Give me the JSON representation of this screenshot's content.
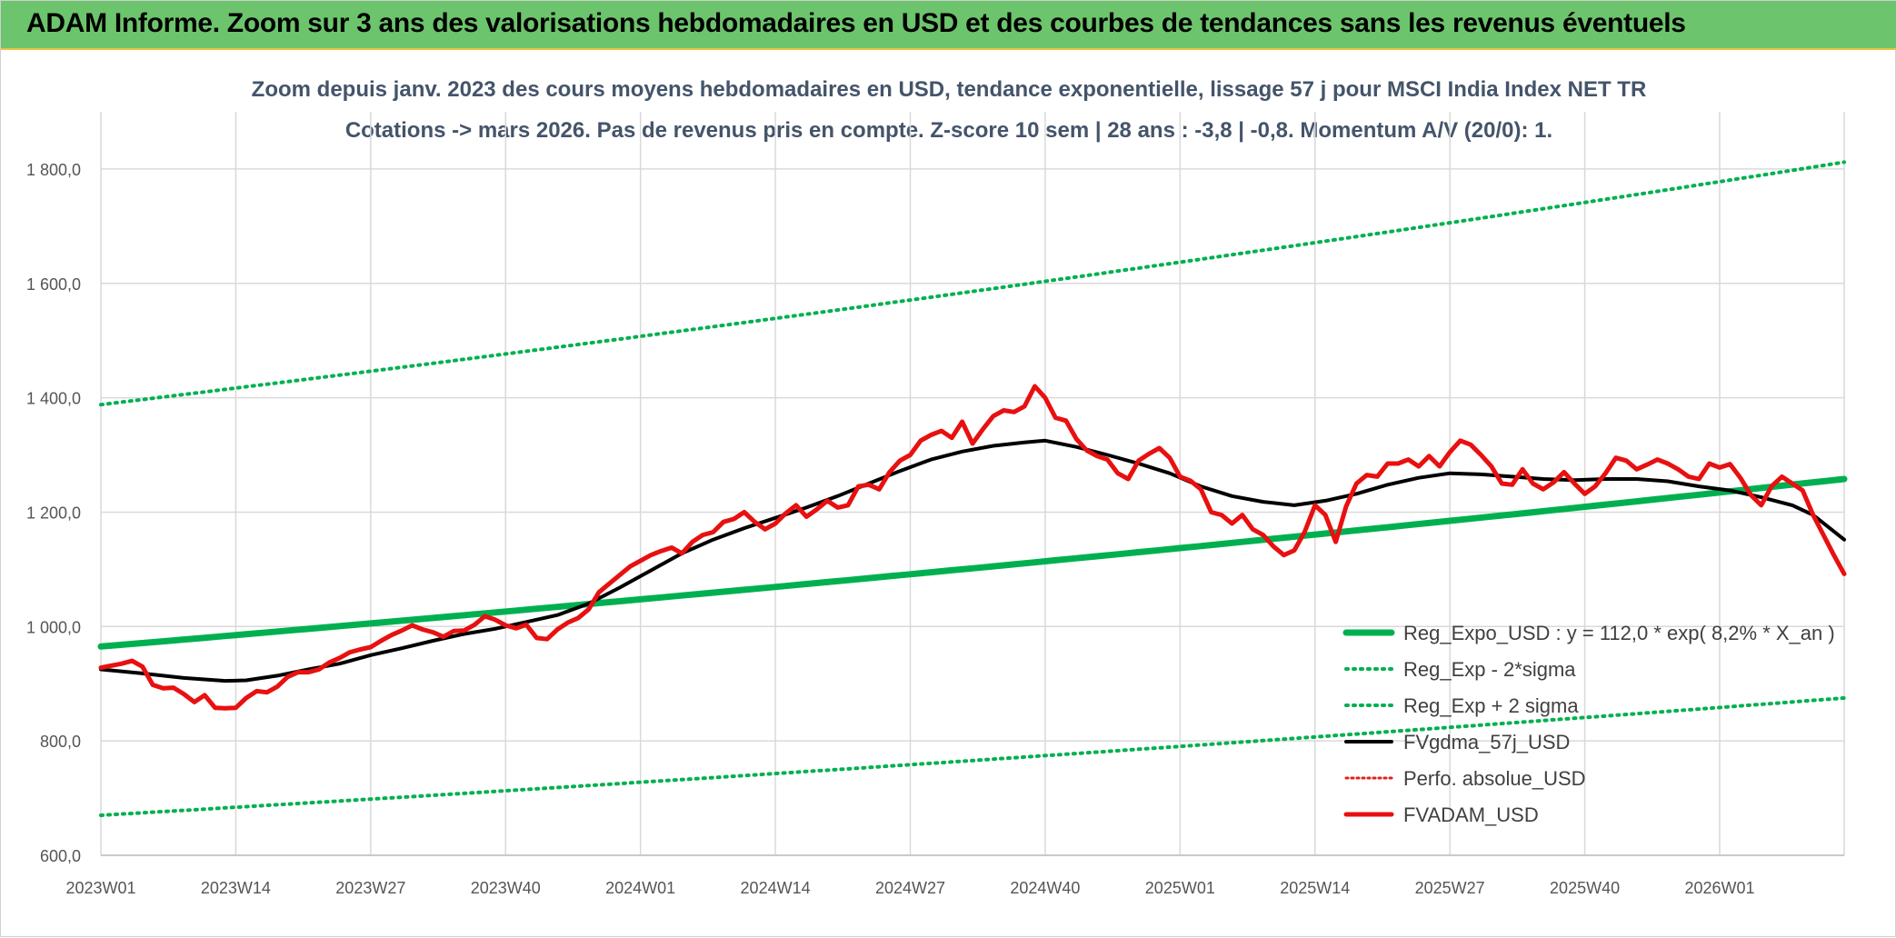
{
  "header": {
    "title": "ADAM Informe. Zoom sur 3 ans des valorisations hebdomadaires en USD et des courbes de tendances sans les revenus éventuels"
  },
  "chart_data": {
    "type": "line",
    "title": "Zoom depuis janv. 2023 des cours moyens hebdomadaires en USD, tendance exponentielle, lissage 57 j pour MSCI India Index NET TR",
    "subtitle": "Cotations -> mars 2026. Pas de revenus pris en compte. Z-score 10 sem | 28 ans : -3,8 | -0,8. Momentum A/V (20/0): 1.",
    "xlabel": "",
    "ylabel": "",
    "ylim": [
      600,
      1900
    ],
    "yticks": [
      600,
      800,
      1000,
      1200,
      1400,
      1600,
      1800
    ],
    "ytick_labels": [
      "600,0",
      "800,0",
      "1 000,0",
      "1 200,0",
      "1 400,0",
      "1 600,0",
      "1 800,0"
    ],
    "x_count": 169,
    "xticks": [
      {
        "i": 0,
        "label": "2023W01"
      },
      {
        "i": 13,
        "label": "2023W14"
      },
      {
        "i": 26,
        "label": "2023W27"
      },
      {
        "i": 39,
        "label": "2023W40"
      },
      {
        "i": 52,
        "label": "2024W01"
      },
      {
        "i": 65,
        "label": "2024W14"
      },
      {
        "i": 78,
        "label": "2024W27"
      },
      {
        "i": 91,
        "label": "2024W40"
      },
      {
        "i": 104,
        "label": "2025W01"
      },
      {
        "i": 117,
        "label": "2025W14"
      },
      {
        "i": 130,
        "label": "2025W27"
      },
      {
        "i": 143,
        "label": "2025W40"
      },
      {
        "i": 156,
        "label": "2026W01"
      }
    ],
    "grid": true,
    "legend": "bottom-right",
    "series": [
      {
        "name": "Reg_Expo_USD : y = 112,0 * exp( 8,2% *  X_an )",
        "kind": "expo",
        "start": 965,
        "end": 1258,
        "color": "#00b050",
        "width": 7,
        "dash": ""
      },
      {
        "name": "Reg_Exp - 2*sigma",
        "kind": "expo",
        "start": 670,
        "end": 875,
        "color": "#00b050",
        "width": 4,
        "dash": "2 6"
      },
      {
        "name": "Reg_Exp + 2 sigma",
        "kind": "expo",
        "start": 1388,
        "end": 1812,
        "color": "#00b050",
        "width": 4,
        "dash": "2 6"
      },
      {
        "name": "FVgdma_57j_USD",
        "kind": "points",
        "color": "#000000",
        "width": 4,
        "dash": "",
        "points": [
          [
            0,
            925
          ],
          [
            4,
            918
          ],
          [
            8,
            910
          ],
          [
            12,
            905
          ],
          [
            14,
            906
          ],
          [
            17,
            914
          ],
          [
            20,
            925
          ],
          [
            23,
            935
          ],
          [
            26,
            950
          ],
          [
            29,
            962
          ],
          [
            32,
            975
          ],
          [
            35,
            987
          ],
          [
            38,
            996
          ],
          [
            41,
            1008
          ],
          [
            44,
            1020
          ],
          [
            47,
            1040
          ],
          [
            50,
            1068
          ],
          [
            53,
            1098
          ],
          [
            56,
            1128
          ],
          [
            59,
            1152
          ],
          [
            62,
            1172
          ],
          [
            65,
            1190
          ],
          [
            68,
            1208
          ],
          [
            71,
            1228
          ],
          [
            74,
            1250
          ],
          [
            77,
            1272
          ],
          [
            80,
            1292
          ],
          [
            83,
            1306
          ],
          [
            86,
            1316
          ],
          [
            89,
            1322
          ],
          [
            91,
            1325
          ],
          [
            94,
            1314
          ],
          [
            97,
            1300
          ],
          [
            100,
            1285
          ],
          [
            103,
            1268
          ],
          [
            106,
            1245
          ],
          [
            109,
            1228
          ],
          [
            112,
            1218
          ],
          [
            115,
            1212
          ],
          [
            118,
            1220
          ],
          [
            121,
            1232
          ],
          [
            124,
            1248
          ],
          [
            127,
            1260
          ],
          [
            130,
            1268
          ],
          [
            133,
            1266
          ],
          [
            136,
            1262
          ],
          [
            139,
            1258
          ],
          [
            142,
            1256
          ],
          [
            145,
            1258
          ],
          [
            148,
            1258
          ],
          [
            151,
            1254
          ],
          [
            154,
            1245
          ],
          [
            157,
            1238
          ],
          [
            160,
            1226
          ],
          [
            163,
            1212
          ],
          [
            165,
            1195
          ],
          [
            168,
            1152
          ]
        ]
      },
      {
        "name": "Perfo. absolue_USD",
        "kind": "hidden",
        "color": "#e02020",
        "width": 3,
        "dash": "2 4"
      },
      {
        "name": "FVADAM_USD",
        "kind": "points",
        "color": "#e81010",
        "width": 5,
        "dash": "",
        "points": [
          [
            0,
            928
          ],
          [
            2,
            935
          ],
          [
            3,
            940
          ],
          [
            4,
            930
          ],
          [
            5,
            898
          ],
          [
            6,
            892
          ],
          [
            7,
            893
          ],
          [
            8,
            882
          ],
          [
            9,
            868
          ],
          [
            10,
            880
          ],
          [
            11,
            858
          ],
          [
            12,
            857
          ],
          [
            13,
            858
          ],
          [
            14,
            875
          ],
          [
            15,
            887
          ],
          [
            16,
            885
          ],
          [
            17,
            895
          ],
          [
            18,
            912
          ],
          [
            19,
            920
          ],
          [
            20,
            920
          ],
          [
            21,
            925
          ],
          [
            22,
            937
          ],
          [
            23,
            945
          ],
          [
            24,
            955
          ],
          [
            25,
            960
          ],
          [
            26,
            964
          ],
          [
            27,
            975
          ],
          [
            28,
            985
          ],
          [
            29,
            993
          ],
          [
            30,
            1002
          ],
          [
            31,
            995
          ],
          [
            32,
            990
          ],
          [
            33,
            982
          ],
          [
            34,
            992
          ],
          [
            35,
            993
          ],
          [
            36,
            1003
          ],
          [
            37,
            1018
          ],
          [
            38,
            1012
          ],
          [
            39,
            1002
          ],
          [
            40,
            997
          ],
          [
            41,
            1003
          ],
          [
            42,
            980
          ],
          [
            43,
            978
          ],
          [
            44,
            995
          ],
          [
            45,
            1007
          ],
          [
            46,
            1015
          ],
          [
            47,
            1030
          ],
          [
            48,
            1060
          ],
          [
            49,
            1075
          ],
          [
            50,
            1090
          ],
          [
            51,
            1105
          ],
          [
            52,
            1115
          ],
          [
            53,
            1125
          ],
          [
            54,
            1132
          ],
          [
            55,
            1138
          ],
          [
            56,
            1128
          ],
          [
            57,
            1148
          ],
          [
            58,
            1160
          ],
          [
            59,
            1165
          ],
          [
            60,
            1183
          ],
          [
            61,
            1188
          ],
          [
            62,
            1200
          ],
          [
            63,
            1183
          ],
          [
            64,
            1170
          ],
          [
            65,
            1180
          ],
          [
            66,
            1198
          ],
          [
            67,
            1212
          ],
          [
            68,
            1192
          ],
          [
            69,
            1205
          ],
          [
            70,
            1220
          ],
          [
            71,
            1208
          ],
          [
            72,
            1212
          ],
          [
            73,
            1245
          ],
          [
            74,
            1248
          ],
          [
            75,
            1240
          ],
          [
            76,
            1270
          ],
          [
            77,
            1290
          ],
          [
            78,
            1300
          ],
          [
            79,
            1325
          ],
          [
            80,
            1335
          ],
          [
            81,
            1342
          ],
          [
            82,
            1330
          ],
          [
            83,
            1358
          ],
          [
            84,
            1320
          ],
          [
            85,
            1345
          ],
          [
            86,
            1368
          ],
          [
            87,
            1378
          ],
          [
            88,
            1375
          ],
          [
            89,
            1385
          ],
          [
            90,
            1420
          ],
          [
            91,
            1400
          ],
          [
            92,
            1365
          ],
          [
            93,
            1360
          ],
          [
            94,
            1328
          ],
          [
            95,
            1308
          ],
          [
            96,
            1298
          ],
          [
            97,
            1292
          ],
          [
            98,
            1268
          ],
          [
            99,
            1258
          ],
          [
            100,
            1290
          ],
          [
            101,
            1302
          ],
          [
            102,
            1312
          ],
          [
            103,
            1295
          ],
          [
            104,
            1262
          ],
          [
            105,
            1255
          ],
          [
            106,
            1240
          ],
          [
            107,
            1200
          ],
          [
            108,
            1195
          ],
          [
            109,
            1180
          ],
          [
            110,
            1195
          ],
          [
            111,
            1170
          ],
          [
            112,
            1160
          ],
          [
            113,
            1140
          ],
          [
            114,
            1125
          ],
          [
            115,
            1133
          ],
          [
            116,
            1165
          ],
          [
            117,
            1212
          ],
          [
            118,
            1195
          ],
          [
            119,
            1148
          ],
          [
            120,
            1210
          ],
          [
            121,
            1250
          ],
          [
            122,
            1265
          ],
          [
            123,
            1262
          ],
          [
            124,
            1285
          ],
          [
            125,
            1285
          ],
          [
            126,
            1292
          ],
          [
            127,
            1280
          ],
          [
            128,
            1298
          ],
          [
            129,
            1280
          ],
          [
            130,
            1305
          ],
          [
            131,
            1325
          ],
          [
            132,
            1318
          ],
          [
            133,
            1300
          ],
          [
            134,
            1280
          ],
          [
            135,
            1250
          ],
          [
            136,
            1248
          ],
          [
            137,
            1275
          ],
          [
            138,
            1250
          ],
          [
            139,
            1240
          ],
          [
            140,
            1252
          ],
          [
            141,
            1270
          ],
          [
            142,
            1250
          ],
          [
            143,
            1232
          ],
          [
            144,
            1245
          ],
          [
            145,
            1268
          ],
          [
            146,
            1295
          ],
          [
            147,
            1290
          ],
          [
            148,
            1275
          ],
          [
            149,
            1283
          ],
          [
            150,
            1292
          ],
          [
            151,
            1285
          ],
          [
            152,
            1275
          ],
          [
            153,
            1262
          ],
          [
            154,
            1258
          ],
          [
            155,
            1285
          ],
          [
            156,
            1278
          ],
          [
            157,
            1284
          ],
          [
            158,
            1260
          ],
          [
            159,
            1230
          ],
          [
            160,
            1212
          ],
          [
            161,
            1245
          ],
          [
            162,
            1262
          ],
          [
            163,
            1250
          ],
          [
            164,
            1238
          ],
          [
            165,
            1195
          ],
          [
            166,
            1160
          ],
          [
            167,
            1125
          ],
          [
            168,
            1092
          ]
        ]
      }
    ]
  }
}
